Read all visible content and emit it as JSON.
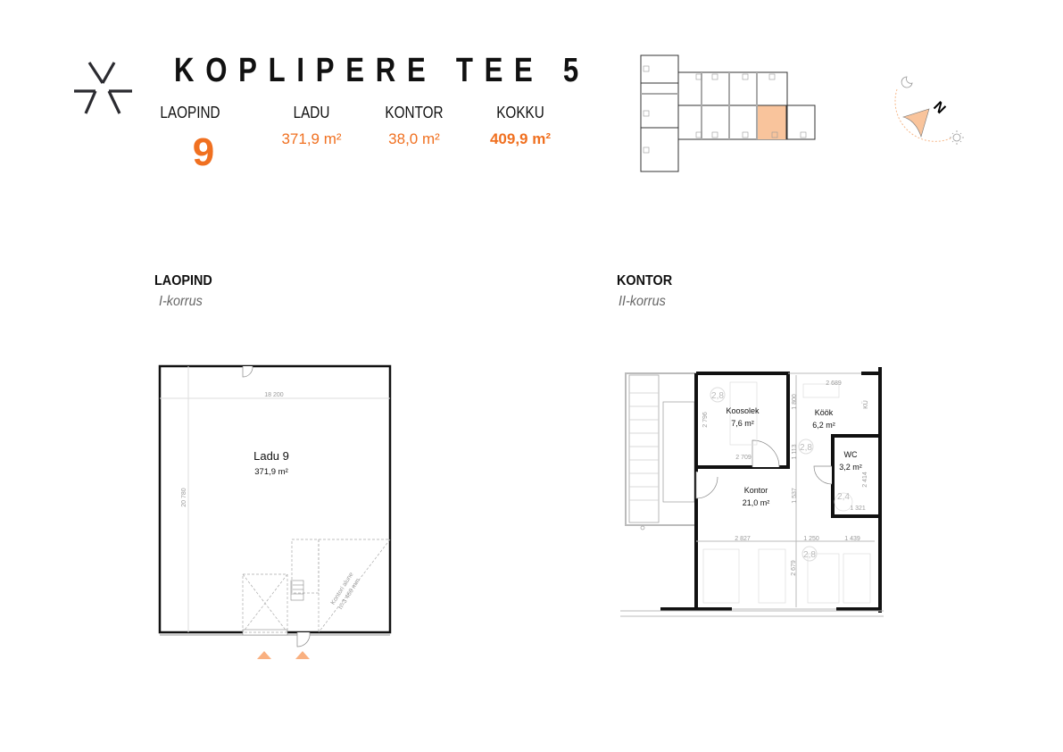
{
  "header": {
    "title": "KOPLIPERE TEE 5",
    "columns": [
      {
        "label": "LAOPIND",
        "value": "9"
      },
      {
        "label": "LADU",
        "value": "371,9 m²"
      },
      {
        "label": "KONTOR",
        "value": "38,0 m²"
      },
      {
        "label": "KOKKU",
        "value": "409,9 m²"
      }
    ]
  },
  "colors": {
    "accent": "#f07020",
    "highlight": "#f9c49c",
    "wall": "#111111",
    "dimension": "#9a9a9a"
  },
  "icons": {
    "logo": "star-logo",
    "compass": "north-arrow",
    "moon": "moon-icon",
    "sun": "sun-icon"
  },
  "compass": {
    "north_label": "N"
  },
  "ground_floor": {
    "title": "LAOPIND",
    "subtitle": "I-korrus",
    "room_name": "Ladu 9",
    "room_area": "371,9 m²",
    "dim_width": "18 200",
    "dim_length": "20 780",
    "note_line1": "Kontori alune",
    "note_line2": "h=3 460 mm"
  },
  "second_floor": {
    "title": "KONTOR",
    "subtitle": "II-korrus",
    "rooms": [
      {
        "name": "Koosolek",
        "area": "7,6 m²"
      },
      {
        "name": "Köök",
        "area": "6,2 m²"
      },
      {
        "name": "WC",
        "area": "3,2 m²"
      },
      {
        "name": "Kontor",
        "area": "21,0 m²"
      }
    ],
    "dimensions": [
      "2 689",
      "1 800",
      "2 796",
      "2 709",
      "1 113",
      "1 537",
      "2 827",
      "1 250",
      "1 439",
      "2 679",
      "1 321",
      "2 414"
    ],
    "ceiling_heights": [
      "2,8",
      "2,8",
      "2,8",
      "2,4"
    ],
    "fridge_label": "KÜ"
  }
}
